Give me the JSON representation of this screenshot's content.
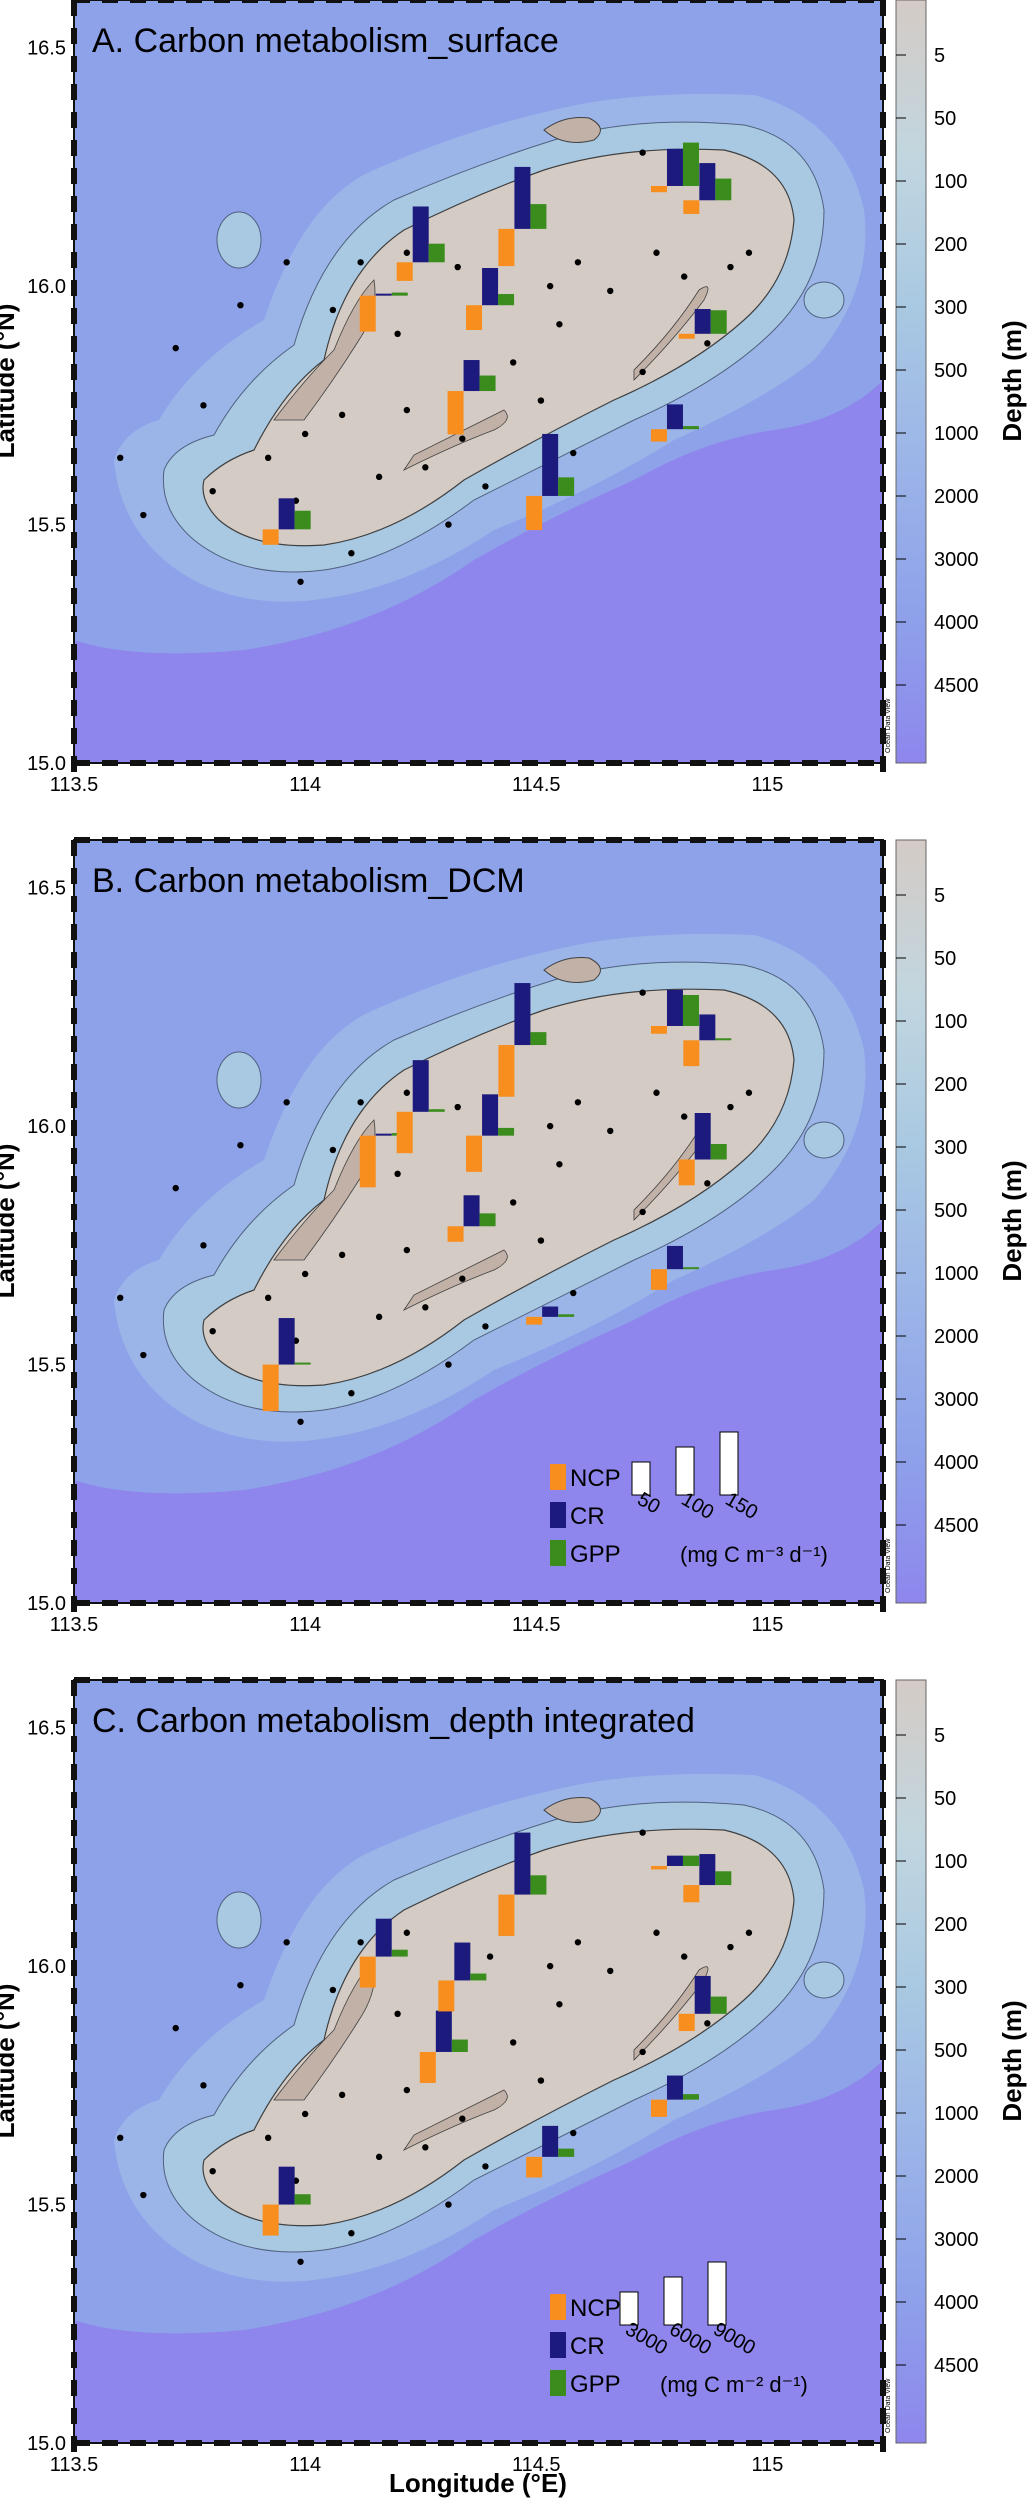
{
  "colors": {
    "ncp": "#f78e1e",
    "cr": "#1c1a7c",
    "gpp": "#3a8c1d",
    "deep": "#8e86ec",
    "mid": "#8ea2ea",
    "shelf": "#a9c9e2",
    "bank": "#d4cbc5",
    "frame": "#111111"
  },
  "legend_text": {
    "ncp": "NCP",
    "cr": "CR",
    "gpp": "GPP",
    "unit_volume": "(mg C m⁻³ d⁻¹)",
    "unit_area": "(mg C m⁻² d⁻¹)"
  },
  "colorbar": {
    "title": "Depth (m)",
    "ticks": [
      "5",
      "50",
      "100",
      "200",
      "300",
      "500",
      "1000",
      "2000",
      "3000",
      "4000",
      "4500"
    ],
    "watermark": "Ocean Data View"
  },
  "stations": [
    [
      113.6,
      15.64
    ],
    [
      113.65,
      15.52
    ],
    [
      113.72,
      15.87
    ],
    [
      113.78,
      15.75
    ],
    [
      113.8,
      15.57
    ],
    [
      113.86,
      15.96
    ],
    [
      113.92,
      15.64
    ],
    [
      113.99,
      15.38
    ],
    [
      113.98,
      15.55
    ],
    [
      114.0,
      15.69
    ],
    [
      114.1,
      15.44
    ],
    [
      114.16,
      15.6
    ],
    [
      114.22,
      15.74
    ],
    [
      114.26,
      15.62
    ],
    [
      114.31,
      15.5
    ],
    [
      114.34,
      15.68
    ],
    [
      114.39,
      15.58
    ],
    [
      114.45,
      15.84
    ],
    [
      114.51,
      15.76
    ],
    [
      114.55,
      15.92
    ],
    [
      114.58,
      15.65
    ],
    [
      114.66,
      15.99
    ],
    [
      114.73,
      15.82
    ],
    [
      114.79,
      15.73
    ],
    [
      114.76,
      16.07
    ],
    [
      114.82,
      16.02
    ],
    [
      114.87,
      15.88
    ],
    [
      114.92,
      16.04
    ],
    [
      114.96,
      16.07
    ],
    [
      114.73,
      16.28
    ],
    [
      114.59,
      16.05
    ],
    [
      114.53,
      16.0
    ],
    [
      114.4,
      16.02
    ],
    [
      114.33,
      16.04
    ],
    [
      114.22,
      16.07
    ],
    [
      114.12,
      16.05
    ],
    [
      114.06,
      15.95
    ],
    [
      113.96,
      16.05
    ],
    [
      114.08,
      15.73
    ],
    [
      114.2,
      15.9
    ]
  ],
  "chart_data": [
    {
      "type": "bar",
      "title": "A. Carbon metabolism_surface",
      "xlabel": "Longitude (°E)",
      "ylabel": "Latitude (°N)",
      "xlim": [
        113.5,
        115.25
      ],
      "ylim": [
        15.0,
        16.6
      ],
      "x_ticks": [
        "113.5",
        "114",
        "114.5",
        "115"
      ],
      "y_ticks": [
        "15.0",
        "15.5",
        "16.0",
        "16.5"
      ],
      "grid": false,
      "unit": "mg C m⁻³ d⁻¹",
      "stations": [
        {
          "lon": 113.96,
          "lat": 15.49,
          "ncp": 25,
          "cr": 50,
          "gpp": 30
        },
        {
          "lon": 114.17,
          "lat": 15.98,
          "ncp": 58,
          "cr": 3,
          "gpp": 5
        },
        {
          "lon": 114.25,
          "lat": 16.05,
          "ncp": 30,
          "cr": 90,
          "gpp": 30
        },
        {
          "lon": 114.36,
          "lat": 15.78,
          "ncp": 70,
          "cr": 50,
          "gpp": 25
        },
        {
          "lon": 114.4,
          "lat": 15.96,
          "ncp": 40,
          "cr": 60,
          "gpp": 18
        },
        {
          "lon": 114.47,
          "lat": 16.12,
          "ncp": 60,
          "cr": 100,
          "gpp": 40
        },
        {
          "lon": 114.53,
          "lat": 15.56,
          "ncp": 55,
          "cr": 100,
          "gpp": 30
        },
        {
          "lon": 114.8,
          "lat": 15.7,
          "ncp": 20,
          "cr": 40,
          "gpp": 5
        },
        {
          "lon": 114.8,
          "lat": 16.21,
          "ncp": 10,
          "cr": 60,
          "gpp": 70
        },
        {
          "lon": 114.87,
          "lat": 16.18,
          "ncp": 22,
          "cr": 60,
          "gpp": 35
        },
        {
          "lon": 114.86,
          "lat": 15.9,
          "ncp": 8,
          "cr": 40,
          "gpp": 38
        }
      ]
    },
    {
      "type": "bar",
      "title": "B. Carbon metabolism_DCM",
      "xlabel": "Longitude (°E)",
      "ylabel": "Latitude (°N)",
      "xlim": [
        113.5,
        115.25
      ],
      "ylim": [
        15.0,
        16.6
      ],
      "x_ticks": [
        "113.5",
        "114",
        "114.5",
        "115"
      ],
      "y_ticks": [
        "15.0",
        "15.5",
        "16.0",
        "16.5"
      ],
      "grid": false,
      "unit": "mg C m⁻³ d⁻¹",
      "scale_bars": [
        50,
        100,
        150
      ],
      "stations": [
        {
          "lon": 113.96,
          "lat": 15.5,
          "ncp": 90,
          "cr": 90,
          "gpp": 2
        },
        {
          "lon": 114.17,
          "lat": 15.98,
          "ncp": 100,
          "cr": 3,
          "gpp": 5
        },
        {
          "lon": 114.25,
          "lat": 16.03,
          "ncp": 80,
          "cr": 100,
          "gpp": 5
        },
        {
          "lon": 114.36,
          "lat": 15.79,
          "ncp": 30,
          "cr": 60,
          "gpp": 25
        },
        {
          "lon": 114.4,
          "lat": 15.98,
          "ncp": 70,
          "cr": 80,
          "gpp": 15
        },
        {
          "lon": 114.47,
          "lat": 16.17,
          "ncp": 100,
          "cr": 120,
          "gpp": 25
        },
        {
          "lon": 114.53,
          "lat": 15.6,
          "ncp": 15,
          "cr": 20,
          "gpp": 5
        },
        {
          "lon": 114.8,
          "lat": 15.7,
          "ncp": 40,
          "cr": 45,
          "gpp": 2
        },
        {
          "lon": 114.8,
          "lat": 16.21,
          "ncp": 15,
          "cr": 70,
          "gpp": 60
        },
        {
          "lon": 114.87,
          "lat": 16.18,
          "ncp": 50,
          "cr": 50,
          "gpp": 0
        },
        {
          "lon": 114.86,
          "lat": 15.93,
          "ncp": 50,
          "cr": 90,
          "gpp": 30
        }
      ]
    },
    {
      "type": "bar",
      "title": "C. Carbon metabolism_depth integrated",
      "xlabel": "Longitude (°E)",
      "ylabel": "Latitude (°N)",
      "xlim": [
        113.5,
        115.25
      ],
      "ylim": [
        15.0,
        16.6
      ],
      "x_ticks": [
        "113.5",
        "114",
        "114.5",
        "115"
      ],
      "y_ticks": [
        "15.0",
        "15.5",
        "16.0",
        "16.5"
      ],
      "grid": false,
      "unit": "mg C m⁻² d⁻¹",
      "scale_bars": [
        3000,
        6000,
        9000
      ],
      "stations": [
        {
          "lon": 113.96,
          "lat": 15.5,
          "ncp": 4500,
          "cr": 5500,
          "gpp": 1500
        },
        {
          "lon": 114.17,
          "lat": 16.02,
          "ncp": 4500,
          "cr": 5500,
          "gpp": 1000
        },
        {
          "lon": 114.3,
          "lat": 15.82,
          "ncp": 4500,
          "cr": 6000,
          "gpp": 1800
        },
        {
          "lon": 114.34,
          "lat": 15.97,
          "ncp": 4500,
          "cr": 5500,
          "gpp": 1000
        },
        {
          "lon": 114.47,
          "lat": 16.15,
          "ncp": 6000,
          "cr": 9000,
          "gpp": 2800
        },
        {
          "lon": 114.53,
          "lat": 15.6,
          "ncp": 3000,
          "cr": 4500,
          "gpp": 1200
        },
        {
          "lon": 114.8,
          "lat": 15.72,
          "ncp": 2500,
          "cr": 3500,
          "gpp": 800
        },
        {
          "lon": 114.8,
          "lat": 16.21,
          "ncp": 500,
          "cr": 1500,
          "gpp": 1500
        },
        {
          "lon": 114.87,
          "lat": 16.17,
          "ncp": 2500,
          "cr": 4500,
          "gpp": 2000
        },
        {
          "lon": 114.86,
          "lat": 15.9,
          "ncp": 2500,
          "cr": 5500,
          "gpp": 2500
        }
      ]
    }
  ]
}
